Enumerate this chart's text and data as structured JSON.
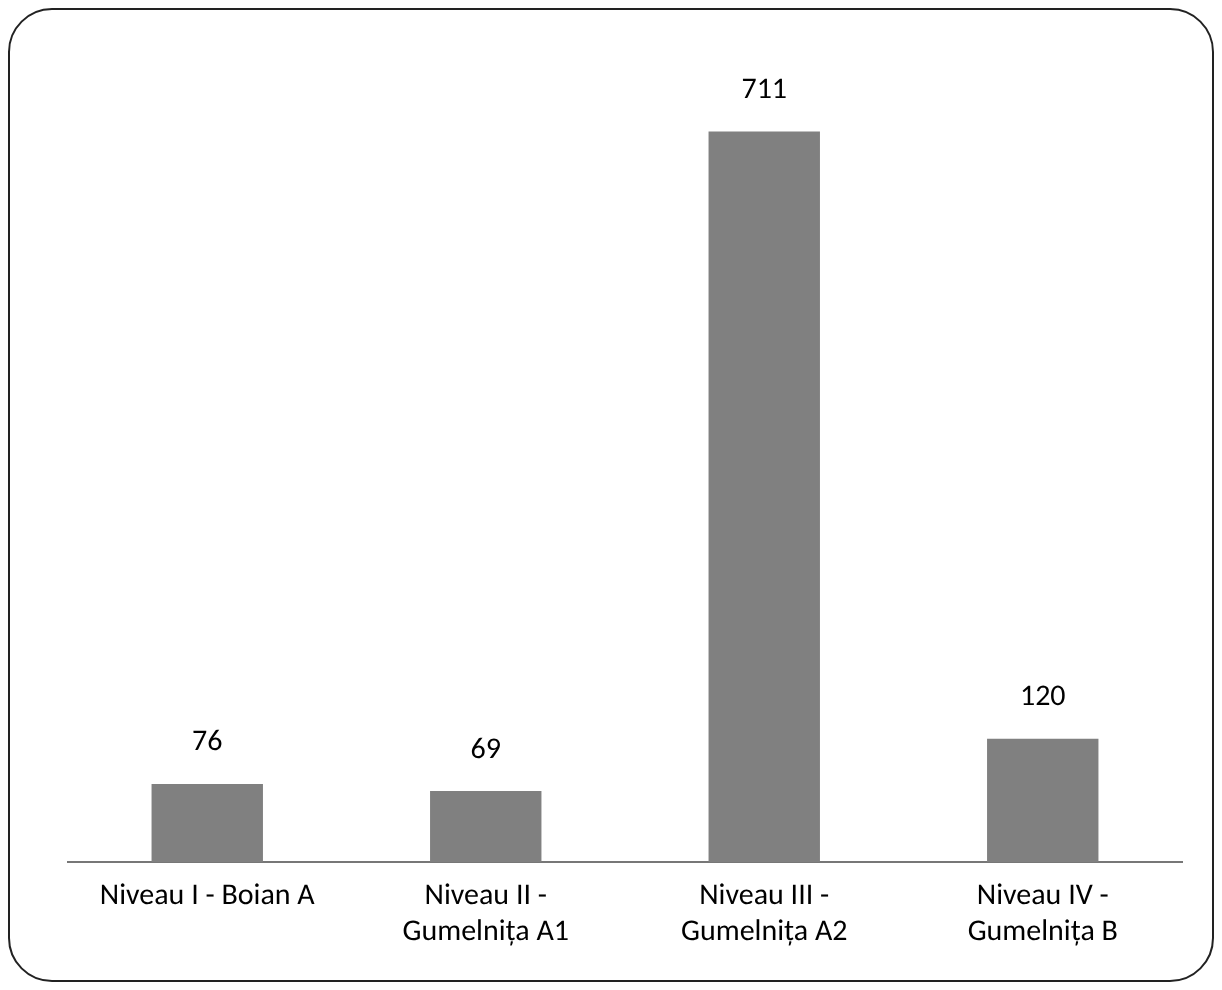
{
  "chart_data": {
    "type": "bar",
    "categories": [
      "Niveau I - Boian A",
      "Niveau II - Gumelnița A1",
      "Niveau III - Gumelnița A2",
      "Niveau IV - Gumelnița B"
    ],
    "values": [
      76,
      69,
      711,
      120
    ],
    "color": "#808080",
    "data_labels": true,
    "grid": false,
    "legend": false
  }
}
